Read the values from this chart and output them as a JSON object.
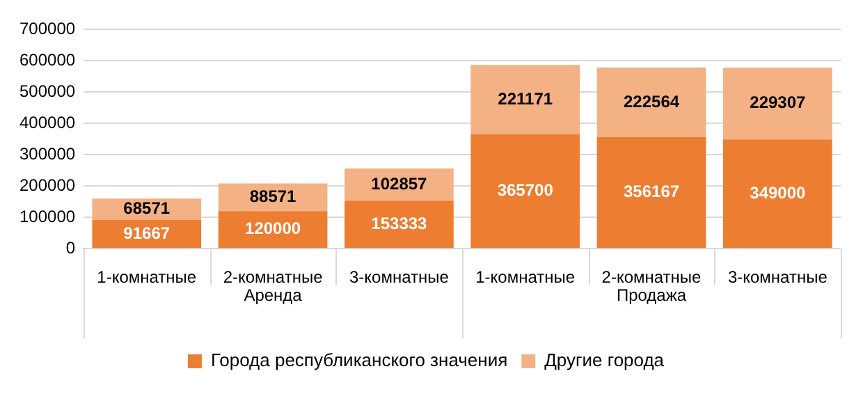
{
  "chart_data": {
    "type": "bar",
    "stacked": true,
    "categories": [
      "1-комнатные",
      "2-комнатные",
      "3-комнатные",
      "1-комнатные",
      "2-комнатные",
      "3-комнатные"
    ],
    "series": [
      {
        "name": "Города республиканского значения",
        "color": "#ed7d31",
        "values": [
          91667,
          120000,
          153333,
          365700,
          356167,
          349000
        ]
      },
      {
        "name": "Другие города",
        "color": "#f4b183",
        "values": [
          68571,
          88571,
          102857,
          221171,
          222564,
          229307
        ]
      }
    ],
    "annotations": [
      "Аренда",
      "Продажа"
    ],
    "ylim": [
      0,
      700000
    ],
    "yticks": [
      0,
      100000,
      200000,
      300000,
      400000,
      500000,
      600000,
      700000
    ],
    "grid": "y",
    "legend": "bottom",
    "data_labels": true
  }
}
